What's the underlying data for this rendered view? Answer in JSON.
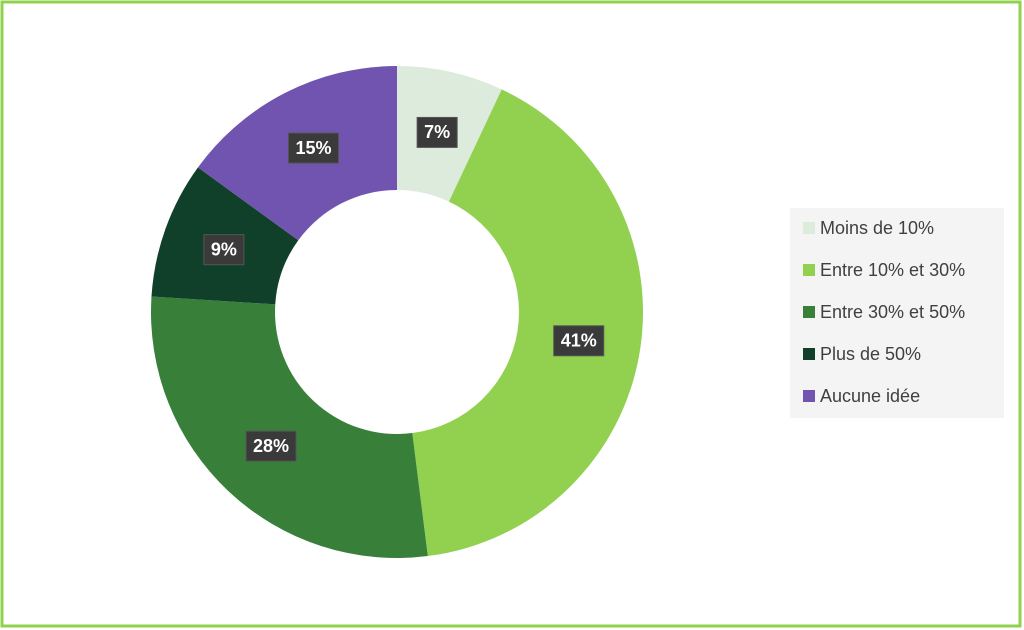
{
  "chart_data": {
    "type": "donut",
    "categories": [
      "Moins de 10%",
      "Entre 10% et 30%",
      "Entre 30% et 50%",
      "Plus de 50%",
      "Aucune idée"
    ],
    "values": [
      7,
      41,
      28,
      9,
      15
    ],
    "value_labels": [
      "7%",
      "41%",
      "28%",
      "9%",
      "15%"
    ],
    "colors": [
      "#dcebdc",
      "#92d050",
      "#38803a",
      "#11402a",
      "#7054b0"
    ],
    "legend": "right"
  }
}
